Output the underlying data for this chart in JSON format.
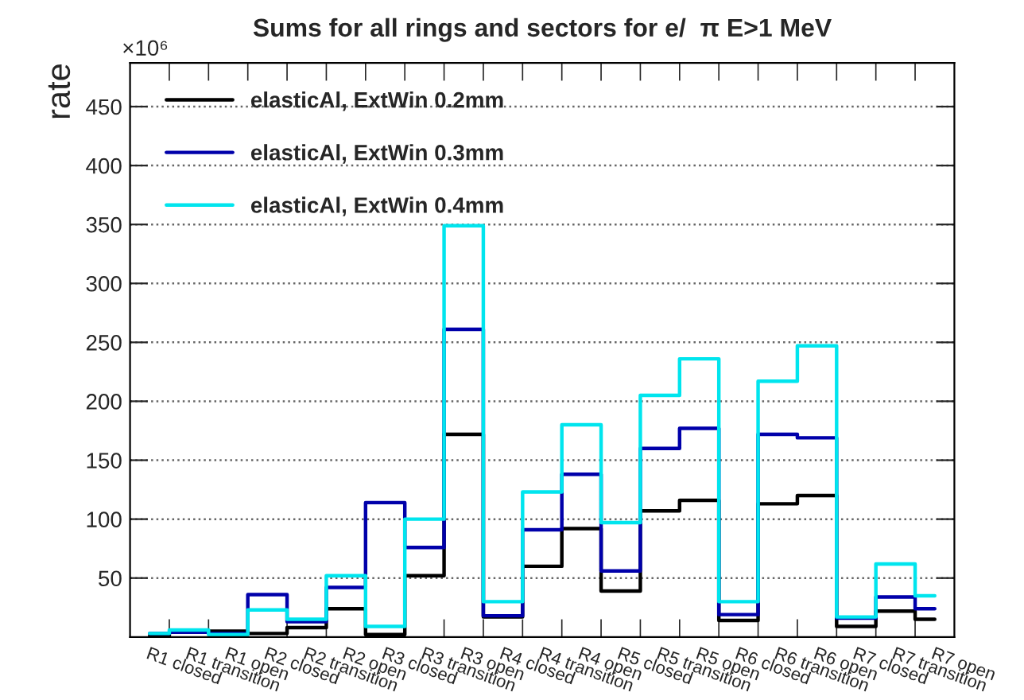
{
  "chart_data": {
    "type": "step",
    "title": "Sums for all rings and sectors for e/  π E>1 MeV",
    "ylabel": "rate",
    "annotations": [
      "×10⁶"
    ],
    "categories": [
      "R1 closed",
      "R1 transition",
      "R1 open",
      "R2 closed",
      "R2 transition",
      "R2 open",
      "R3 closed",
      "R3 transition",
      "R3 open",
      "R4 closed",
      "R4 transition",
      "R4 open",
      "R5 closed",
      "R5 transition",
      "R5 open",
      "R6 closed",
      "R6 transition",
      "R6 open",
      "R7 closed",
      "R7 transition",
      "R7 open"
    ],
    "series": [
      {
        "name": "elasticAl, ExtWin 0.2mm",
        "color": "#000000",
        "values": [
          1,
          4,
          5,
          3,
          8,
          24,
          2,
          52,
          172,
          17,
          60,
          92,
          39,
          107,
          116,
          14,
          113,
          120,
          9,
          22,
          15
        ]
      },
      {
        "name": "elasticAl, ExtWin 0.3mm",
        "color": "#0000aa",
        "values": [
          3,
          4,
          3,
          36,
          13,
          42,
          114,
          76,
          261,
          18,
          91,
          138,
          56,
          160,
          177,
          19,
          172,
          169,
          16,
          34,
          24
        ]
      },
      {
        "name": "elasticAl, ExtWin 0.4mm",
        "color": "#00e5ee",
        "values": [
          3,
          6,
          2,
          23,
          15,
          52,
          9,
          100,
          349,
          30,
          123,
          180,
          97,
          205,
          236,
          30,
          217,
          247,
          17,
          62,
          35
        ]
      }
    ],
    "ylim": [
      0,
      487
    ],
    "yticks": [
      50,
      100,
      150,
      200,
      250,
      300,
      350,
      400,
      450
    ],
    "grid": "y",
    "legend": "top left"
  }
}
